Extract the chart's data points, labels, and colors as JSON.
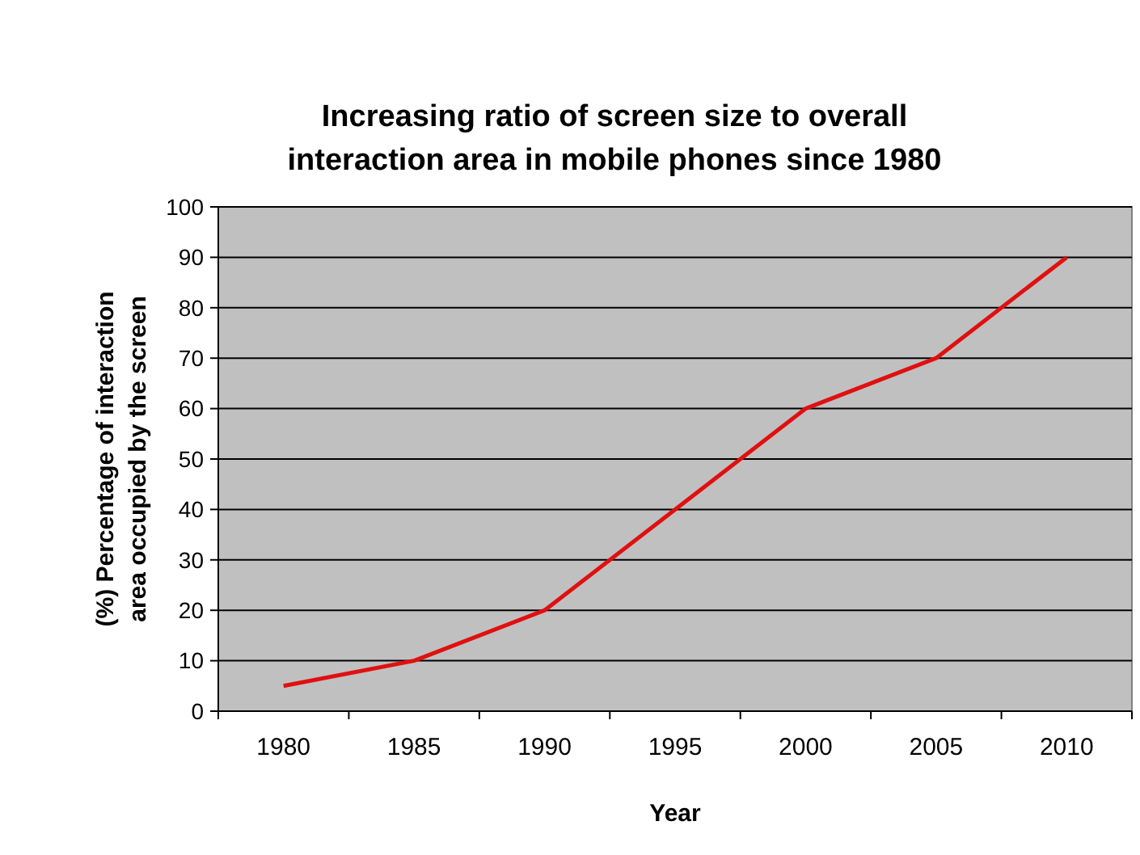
{
  "chart_data": {
    "type": "line",
    "title": "Increasing ratio of screen size to overall\ninteraction area in mobile phones since 1980",
    "xlabel": "Year",
    "ylabel": "(%) Percentage of interaction\narea occupied by the screen",
    "categories": [
      "1980",
      "1985",
      "1990",
      "1995",
      "2000",
      "2005",
      "2010"
    ],
    "series": [
      {
        "color": "#e01010",
        "values": [
          5,
          10,
          20,
          40,
          60,
          70,
          90
        ]
      }
    ],
    "ylim": [
      0,
      100
    ],
    "yticks": [
      0,
      10,
      20,
      30,
      40,
      50,
      60,
      70,
      80,
      90,
      100
    ],
    "grid": "y",
    "marker": "none",
    "line_style": "solid"
  }
}
